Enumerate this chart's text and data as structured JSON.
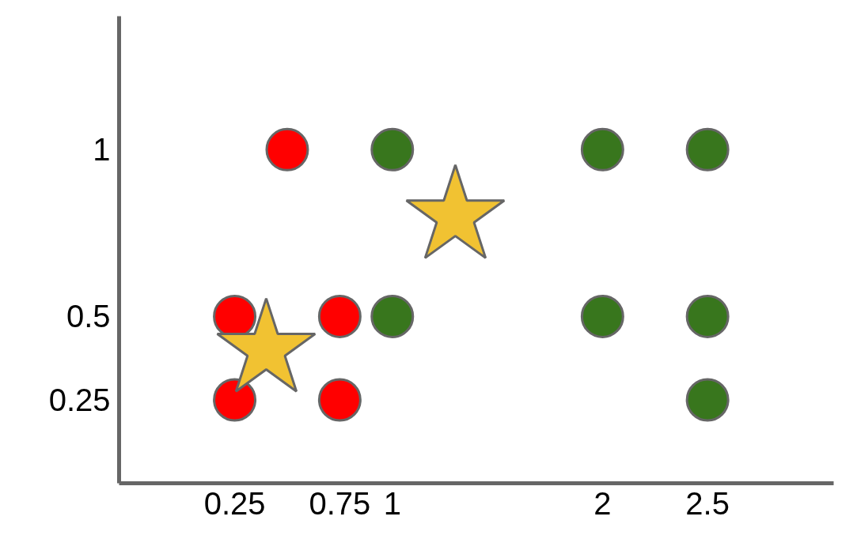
{
  "chart_data": {
    "type": "scatter",
    "xlim": [
      -0.3,
      3.1
    ],
    "ylim": [
      0,
      1.4
    ],
    "xticks": [
      0.25,
      0.75,
      1,
      2,
      2.5
    ],
    "yticks": [
      0.25,
      0.5,
      1
    ],
    "grid": false,
    "series": [
      {
        "color": "#ff0000",
        "marker": "circle",
        "x": [
          0.25,
          0.25,
          0.5,
          0.75,
          0.75
        ],
        "values": [
          0.5,
          0.25,
          1,
          0.5,
          0.25
        ]
      },
      {
        "color": "#38761d",
        "marker": "circle",
        "x": [
          1,
          1,
          2,
          2,
          2.5,
          2.5,
          2.5
        ],
        "values": [
          1,
          0.5,
          1,
          0.5,
          1,
          0.5,
          0.25
        ]
      },
      {
        "color": "#f1c232",
        "marker": "star",
        "x": [
          0.4,
          1.3
        ],
        "values": [
          0.4,
          0.8
        ]
      }
    ]
  }
}
